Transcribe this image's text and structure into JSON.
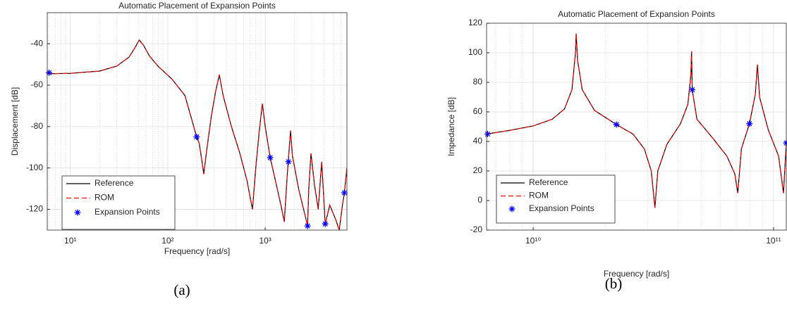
{
  "chart_data": [
    {
      "type": "line",
      "title": "Automatic Placement of Expansion Points",
      "xlabel": "Frequency [rad/s]",
      "ylabel": "Displacement [dB]",
      "caption": "(a)",
      "xscale": "log",
      "grid": true,
      "legend": "lower left",
      "xlim": [
        5.8,
        6900
      ],
      "xticks": [
        {
          "value": 10,
          "label": "10¹"
        },
        {
          "value": 100,
          "label": "10²"
        },
        {
          "value": 1000,
          "label": "10³"
        }
      ],
      "ylim": [
        -130,
        -25
      ],
      "yticks": [
        -120,
        -100,
        -80,
        -60,
        -40
      ],
      "x": [
        5.8,
        10,
        20,
        30,
        40,
        46,
        51,
        56,
        65,
        80,
        110,
        150,
        198,
        210,
        225,
        234,
        250,
        280,
        310,
        338,
        370,
        450,
        550,
        650,
        740,
        800,
        870,
        935,
        1000,
        1125,
        1300,
        1450,
        1570,
        1680,
        1780,
        1820,
        1900,
        2200,
        2600,
        2720,
        2800,
        2950,
        3200,
        3500,
        3800,
        4130,
        4600,
        5300,
        5750,
        6200,
        6490,
        6900
      ],
      "series": [
        {
          "name": "Reference",
          "color": "#000000",
          "dash": false,
          "values": [
            -54.5,
            -54.3,
            -53.2,
            -50.8,
            -46.5,
            -42,
            -38.2,
            -40.5,
            -46,
            -51,
            -57,
            -65,
            -85,
            -88,
            -97,
            -103,
            -92,
            -75,
            -63,
            -55,
            -65,
            -80,
            -93,
            -106,
            -120,
            -100,
            -82,
            -69,
            -80,
            -95,
            -108,
            -118,
            -126,
            -104,
            -88,
            -82,
            -94,
            -110,
            -124,
            -128,
            -110,
            -93,
            -108,
            -120,
            -97,
            -127,
            -118,
            -125,
            -130,
            -118,
            -112,
            -100
          ]
        },
        {
          "name": "ROM",
          "color": "#ff0000",
          "dash": true,
          "values": [
            -54.5,
            -54.3,
            -53.2,
            -50.8,
            -46.5,
            -42,
            -38.2,
            -40.5,
            -46,
            -51,
            -57,
            -65,
            -85,
            -88,
            -97,
            -103,
            -92,
            -75,
            -63,
            -55,
            -65,
            -80,
            -93,
            -106,
            -120,
            -100,
            -82,
            -69,
            -80,
            -95,
            -108,
            -118,
            -126,
            -104,
            -88,
            -82,
            -94,
            -110,
            -124,
            -128,
            -110,
            -93,
            -108,
            -120,
            -97,
            -127,
            -118,
            -125,
            -130,
            -118,
            -112,
            -100
          ]
        },
        {
          "name": "Expansion Points",
          "color": "#0000ff",
          "marker": "asterisk",
          "x": [
            6.06,
            198,
            1125,
            1734,
            2720,
            4130,
            6490
          ],
          "values": [
            -54,
            -85,
            -95,
            -97,
            -128,
            -127,
            -112
          ]
        }
      ]
    },
    {
      "type": "line",
      "title": "Automatic Placement of Expansion Points",
      "xlabel": "Frequency [rad/s]",
      "ylabel": "Impedance [dB]",
      "caption": "(b)",
      "xscale": "log",
      "grid": true,
      "legend": "lower left",
      "xlim": [
        6400000000.0,
        113000000000.0
      ],
      "xticks": [
        {
          "value": 10000000000.0,
          "label": "10¹⁰"
        },
        {
          "value": 100000000000.0,
          "label": "10¹¹"
        }
      ],
      "ylim": [
        -20,
        120
      ],
      "yticks": [
        -20,
        0,
        20,
        40,
        60,
        80,
        100,
        120
      ],
      "x": [
        6400000000.0,
        8000000000.0,
        10000000000.0,
        12000000000.0,
        13500000000.0,
        14500000000.0,
        15000000000.0,
        15100000000.0,
        15300000000.0,
        16000000000.0,
        18000000000.0,
        22200000000.0,
        26000000000.0,
        29000000000.0,
        31000000000.0,
        32100000000.0,
        33000000000.0,
        36000000000.0,
        41000000000.0,
        44000000000.0,
        45300000000.0,
        45600000000.0,
        45900000000.0,
        48000000000.0,
        56000000000.0,
        64000000000.0,
        69000000000.0,
        71000000000.0,
        73500000000.0,
        79400000000.0,
        84000000000.0,
        85700000000.0,
        87500000000.0,
        95000000000.0,
        105000000000.0,
        110000000000.0,
        113000000000.0
      ],
      "series": [
        {
          "name": "Reference",
          "color": "#000000",
          "dash": false,
          "values": [
            45,
            47.5,
            50.5,
            55,
            62,
            75,
            100,
            113,
            95,
            75,
            61,
            51.4,
            45,
            35,
            20,
            -5,
            20,
            38,
            52,
            65,
            85,
            101,
            75,
            55,
            42,
            30,
            18,
            5,
            35,
            52,
            72,
            92,
            70,
            48,
            30,
            5,
            39
          ]
        },
        {
          "name": "ROM",
          "color": "#ff0000",
          "dash": true,
          "values": [
            45,
            47.5,
            50.5,
            55,
            62,
            75,
            100,
            113,
            95,
            75,
            61,
            51.4,
            45,
            35,
            20,
            -5,
            20,
            38,
            52,
            65,
            85,
            101,
            75,
            55,
            42,
            30,
            18,
            5,
            35,
            52,
            72,
            92,
            70,
            48,
            30,
            5,
            39
          ]
        },
        {
          "name": "Expansion Points",
          "color": "#0000ff",
          "marker": "asterisk",
          "x": [
            6460000000.0,
            22200000000.0,
            45900000000.0,
            79400000000.0,
            113000000000.0
          ],
          "values": [
            45,
            51.4,
            75,
            52,
            39
          ]
        }
      ]
    }
  ]
}
